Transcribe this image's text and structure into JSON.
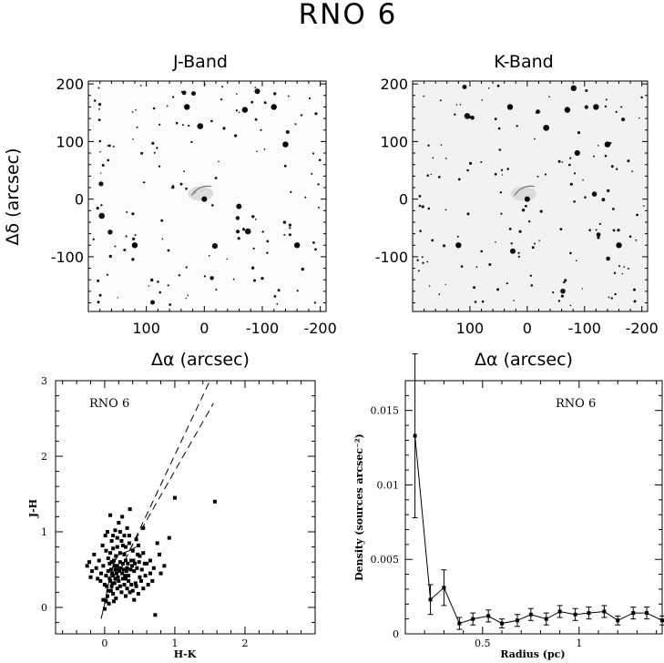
{
  "figure": {
    "title": "RNO 6"
  },
  "panels": {
    "jband": {
      "title": "J-Band",
      "xlabel": "Δα (arcsec)",
      "ylabel": "Δδ (arcsec)",
      "xticks": [
        100,
        0,
        -100,
        -200
      ],
      "yticks": [
        200,
        100,
        0,
        -100
      ],
      "xlim": [
        200,
        -210
      ],
      "ylim": [
        -195,
        205
      ]
    },
    "kband": {
      "title": "K-Band",
      "xlabel": "Δα (arcsec)",
      "xticks": [
        100,
        0,
        -100,
        -200
      ],
      "yticks": [
        200,
        100,
        0,
        -100
      ],
      "xlim": [
        200,
        -210
      ],
      "ylim": [
        -195,
        205
      ]
    }
  },
  "chart_data": [
    {
      "type": "scatter",
      "annotation": "RNO 6",
      "xlabel": "H-K",
      "ylabel": "J-H",
      "xlim": [
        -0.7,
        3.0
      ],
      "ylim": [
        -0.35,
        3.0
      ],
      "xticks": [
        0,
        1,
        2
      ],
      "yticks": [
        0,
        1,
        2,
        3
      ],
      "points": [
        [
          0.02,
          0.08
        ],
        [
          0.05,
          0.22
        ],
        [
          0.08,
          0.35
        ],
        [
          0.12,
          0.42
        ],
        [
          0.15,
          0.5
        ],
        [
          0.18,
          0.55
        ],
        [
          0.22,
          0.6
        ],
        [
          0.25,
          0.45
        ],
        [
          0.28,
          0.7
        ],
        [
          0.3,
          0.38
        ],
        [
          0.32,
          0.52
        ],
        [
          0.35,
          0.85
        ],
        [
          0.38,
          0.62
        ],
        [
          0.4,
          0.75
        ],
        [
          0.42,
          0.48
        ],
        [
          0.45,
          0.9
        ],
        [
          0.48,
          0.82
        ],
        [
          0.5,
          0.68
        ],
        [
          0.55,
          0.72
        ],
        [
          0.6,
          0.58
        ],
        [
          0.65,
          0.45
        ],
        [
          0.75,
          0.85
        ],
        [
          0.05,
          0.65
        ],
        [
          0.08,
          0.72
        ],
        [
          0.1,
          0.6
        ],
        [
          0.12,
          0.78
        ],
        [
          0.14,
          0.55
        ],
        [
          0.16,
          0.68
        ],
        [
          0.18,
          0.8
        ],
        [
          0.2,
          0.5
        ],
        [
          0.22,
          0.72
        ],
        [
          0.24,
          0.88
        ],
        [
          0.26,
          0.58
        ],
        [
          0.28,
          0.95
        ],
        [
          0.3,
          0.62
        ],
        [
          0.32,
          1.05
        ],
        [
          0.34,
          0.42
        ],
        [
          0.36,
          1.3
        ],
        [
          0.2,
          1.12
        ],
        [
          0.25,
          1.2
        ],
        [
          0.08,
          1.22
        ],
        [
          0.15,
          1.02
        ],
        [
          0.12,
          0.95
        ],
        [
          -0.02,
          0.55
        ],
        [
          -0.05,
          0.45
        ],
        [
          -0.08,
          0.62
        ],
        [
          -0.1,
          0.38
        ],
        [
          -0.12,
          0.52
        ],
        [
          -0.15,
          0.7
        ],
        [
          -0.18,
          0.48
        ],
        [
          -0.2,
          0.4
        ],
        [
          -0.22,
          0.6
        ],
        [
          -0.25,
          0.55
        ],
        [
          0.0,
          0.3
        ],
        [
          0.02,
          0.42
        ],
        [
          0.04,
          0.15
        ],
        [
          0.06,
          0.05
        ],
        [
          0.1,
          0.28
        ],
        [
          0.12,
          0.18
        ],
        [
          0.14,
          0.32
        ],
        [
          0.16,
          0.12
        ],
        [
          0.18,
          0.25
        ],
        [
          0.2,
          0.35
        ],
        [
          0.22,
          0.28
        ],
        [
          0.24,
          0.2
        ],
        [
          0.26,
          0.38
        ],
        [
          0.28,
          0.3
        ],
        [
          0.3,
          0.15
        ],
        [
          0.32,
          0.25
        ],
        [
          0.34,
          0.35
        ],
        [
          0.36,
          0.2
        ],
        [
          0.38,
          0.3
        ],
        [
          0.4,
          0.22
        ],
        [
          0.42,
          0.1
        ],
        [
          0.45,
          0.28
        ],
        [
          0.48,
          0.18
        ],
        [
          0.52,
          0.35
        ],
        [
          0.55,
          0.25
        ],
        [
          0.58,
          0.42
        ],
        [
          0.62,
          0.3
        ],
        [
          0.68,
          0.35
        ],
        [
          0.72,
          -0.1
        ],
        [
          0.0,
          -0.02
        ],
        [
          -0.02,
          0.1
        ],
        [
          0.05,
          0.48
        ],
        [
          0.07,
          0.58
        ],
        [
          0.09,
          0.5
        ],
        [
          0.11,
          0.45
        ],
        [
          0.13,
          0.62
        ],
        [
          0.17,
          0.45
        ],
        [
          0.19,
          0.4
        ],
        [
          0.21,
          0.48
        ],
        [
          0.23,
          0.52
        ],
        [
          0.27,
          0.5
        ],
        [
          0.29,
          0.42
        ],
        [
          0.31,
          0.48
        ],
        [
          0.33,
          0.58
        ],
        [
          0.37,
          0.5
        ],
        [
          0.39,
          0.55
        ],
        [
          0.41,
          0.62
        ],
        [
          0.43,
          0.58
        ],
        [
          0.46,
          0.52
        ],
        [
          0.49,
          0.6
        ],
        [
          0.53,
          0.5
        ],
        [
          0.57,
          0.58
        ],
        [
          0.7,
          0.52
        ],
        [
          0.8,
          0.45
        ],
        [
          0.85,
          0.55
        ],
        [
          0.92,
          0.92
        ],
        [
          0.1,
          0.88
        ],
        [
          0.18,
          0.92
        ],
        [
          0.26,
          0.82
        ],
        [
          0.3,
          0.8
        ],
        [
          0.02,
          0.75
        ],
        [
          -0.03,
          0.82
        ],
        [
          -0.06,
          0.35
        ],
        [
          0.03,
          0.28
        ],
        [
          0.07,
          0.38
        ],
        [
          0.09,
          0.22
        ],
        [
          0.11,
          0.32
        ],
        [
          0.13,
          0.08
        ],
        [
          0.15,
          0.38
        ],
        [
          0.01,
          0.95
        ],
        [
          0.04,
          1.0
        ],
        [
          0.22,
          1.0
        ],
        [
          0.35,
          0.95
        ],
        [
          0.55,
          1.05
        ],
        [
          0.65,
          0.62
        ],
        [
          0.78,
          0.7
        ],
        [
          0.5,
          0.4
        ],
        [
          0.44,
          0.32
        ],
        [
          0.47,
          0.7
        ],
        [
          1.0,
          1.45
        ],
        [
          1.57,
          1.4
        ]
      ]
    },
    {
      "type": "line",
      "annotation": "RNO 6",
      "xlabel": "Radius (pc)",
      "ylabel": "Density (sources arcsec⁻²)",
      "xlim": [
        0.1,
        1.43
      ],
      "ylim": [
        0,
        0.017
      ],
      "xticks": [
        0.5,
        1
      ],
      "yticks": [
        0,
        0.005,
        0.01,
        0.015
      ],
      "ytick_labels": [
        "0",
        "0.005",
        "0.01",
        "0.015"
      ],
      "series": [
        {
          "x": [
            0.15,
            0.23,
            0.3,
            0.38,
            0.45,
            0.53,
            0.6,
            0.68,
            0.75,
            0.83,
            0.9,
            0.98,
            1.05,
            1.13,
            1.2,
            1.28,
            1.35,
            1.43
          ],
          "y": [
            0.0133,
            0.0023,
            0.0031,
            0.0007,
            0.001,
            0.0012,
            0.0007,
            0.0009,
            0.0013,
            0.001,
            0.0015,
            0.0013,
            0.0014,
            0.0015,
            0.0009,
            0.0014,
            0.0014,
            0.0009
          ],
          "err": [
            0.0055,
            0.001,
            0.0012,
            0.0004,
            0.0004,
            0.0004,
            0.0003,
            0.0004,
            0.0004,
            0.0004,
            0.0004,
            0.0004,
            0.0004,
            0.0004,
            0.0003,
            0.0004,
            0.0004,
            0.0003
          ]
        }
      ]
    }
  ]
}
